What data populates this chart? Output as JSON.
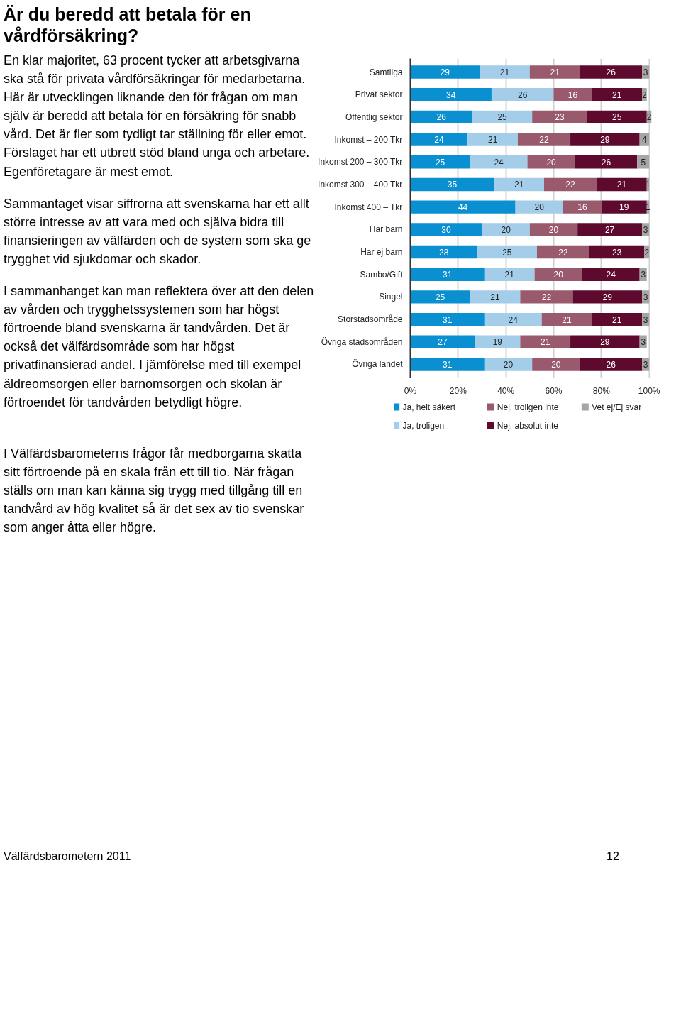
{
  "chart_data": {
    "type": "bar",
    "orientation": "horizontal",
    "stacked": true,
    "title": "Är du beredd att betala för en vårdförsäkring?",
    "subtitle": "En klar majoritet, 63 procent tycker att arbetsgivarna ska stå för privata vårdförsäkringar för medarbetarna. Här är utvecklingen liknande den för frågan om man själv är beredd att betala för en försäkring för snabb vård. Det är fler som tydligt tar ställning för eller emot. Förslaget har ett utbrett stöd bland unga och arbetare. Egenföretagare är mest emot.",
    "annotations": [
      "Sammantaget visar siffrorna att svenskarna har ett allt större intresse av att vara med och själva bidra till finansieringen av välfärden och de system som ska ge trygghet vid sjukdomar och skador.",
      "I sammanhanget kan man reflektera över att den delen av vården och trygghetssystemen som har högst förtroende bland svenskarna är tandvården. Det är också det välfärdsområde som har högst privatfinansierad andel. I jämförelse med till exempel äldreomsorgen eller barnomsorgen och skolan är förtroendet för tandvården betydligt högre.",
      "I Välfärdsbarometerns frågor får medborgarna skatta sitt förtroende på en skala från ett till tio. När frågan ställs om man kan känna sig trygg med tillgång till en tandvård av hög kvalitet så är det sex av tio svenskar som anger åtta eller högre.",
      "Välfärdsbarometern 2011",
      "12"
    ],
    "categories": [
      "Samtliga",
      "Privat sektor",
      "Offentlig sektor",
      "Inkomst – 200 Tkr",
      "Inkomst 200 – 300 Tkr",
      "Inkomst 300 – 400 Tkr",
      "Inkomst 400 – Tkr",
      "Har barn",
      "Har ej barn",
      "Sambo/Gift",
      "Singel",
      "Storstadsområde",
      "Övriga stadsområden",
      "Övriga landet"
    ],
    "series": [
      {
        "name": "Ja, helt säkert",
        "color": "#0a8fd0",
        "values": [
          29,
          34,
          26,
          24,
          25,
          35,
          44,
          30,
          28,
          31,
          25,
          31,
          27,
          31
        ]
      },
      {
        "name": "Ja, troligen",
        "color": "#a3cde9",
        "values": [
          21,
          26,
          25,
          21,
          24,
          21,
          20,
          20,
          25,
          21,
          21,
          24,
          19,
          20
        ]
      },
      {
        "name": "Nej, troligen inte",
        "color": "#9a5a6e",
        "values": [
          21,
          16,
          23,
          22,
          20,
          22,
          16,
          20,
          22,
          20,
          22,
          21,
          21,
          20
        ]
      },
      {
        "name": "Nej, absolut inte",
        "color": "#5e0a2e",
        "values": [
          26,
          21,
          25,
          29,
          26,
          21,
          19,
          27,
          23,
          24,
          29,
          21,
          29,
          26
        ]
      },
      {
        "name": "Vet ej/Ej svar",
        "color": "#a6a6a6",
        "values": [
          3,
          2,
          2,
          4,
          5,
          1,
          1,
          3,
          2,
          3,
          3,
          3,
          3,
          3
        ]
      }
    ],
    "xlim": [
      0,
      101
    ],
    "xticks": [
      {
        "value": 0,
        "label": "0%"
      },
      {
        "value": 20,
        "label": "20%"
      },
      {
        "value": 40,
        "label": "40%"
      },
      {
        "value": 60,
        "label": "60%"
      },
      {
        "value": 80,
        "label": "80%"
      },
      {
        "value": 100,
        "label": "100%"
      }
    ],
    "grid": "x",
    "data_labels": true,
    "legend": "bottom"
  }
}
